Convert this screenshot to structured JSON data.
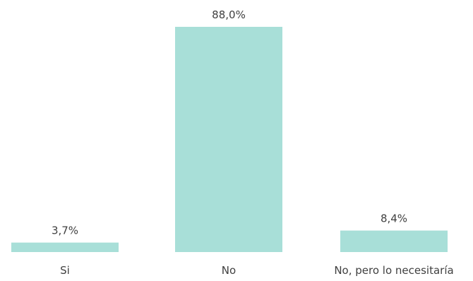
{
  "chart_data": {
    "type": "bar",
    "categories": [
      "Si",
      "No",
      "No, pero lo necesitaría"
    ],
    "values": [
      3.7,
      88.0,
      8.4
    ],
    "value_labels": [
      "3,7%",
      "88,0%",
      "8,4%"
    ],
    "unit": "%",
    "ylim": [
      0,
      88.0
    ],
    "grid": false,
    "legend": "none",
    "bar_color": "#a8dfd8"
  }
}
